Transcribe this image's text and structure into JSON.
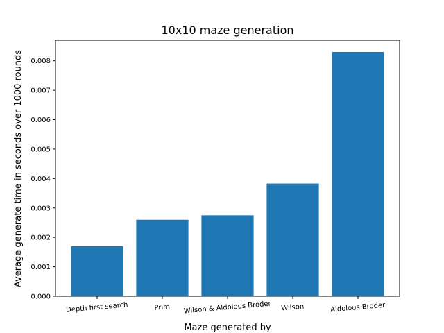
{
  "chart_data": {
    "type": "bar",
    "title": "10x10 maze generation",
    "xlabel": "Maze generated by",
    "ylabel": "Average generate time in seconds over 1000 rounds",
    "categories": [
      "Depth first search",
      "Prim",
      "Wilson & Aldolous Broder",
      "Wilson",
      "Aldolous Broder"
    ],
    "values": [
      0.0017,
      0.0026,
      0.00275,
      0.00383,
      0.0083
    ],
    "ylim": [
      0,
      0.0087
    ],
    "yticks": [
      "0.000",
      "0.001",
      "0.002",
      "0.003",
      "0.004",
      "0.005",
      "0.006",
      "0.007",
      "0.008"
    ],
    "bar_color": "#1f77b4",
    "grid": false,
    "legend": "none",
    "xtick_rotation_deg": -5
  }
}
